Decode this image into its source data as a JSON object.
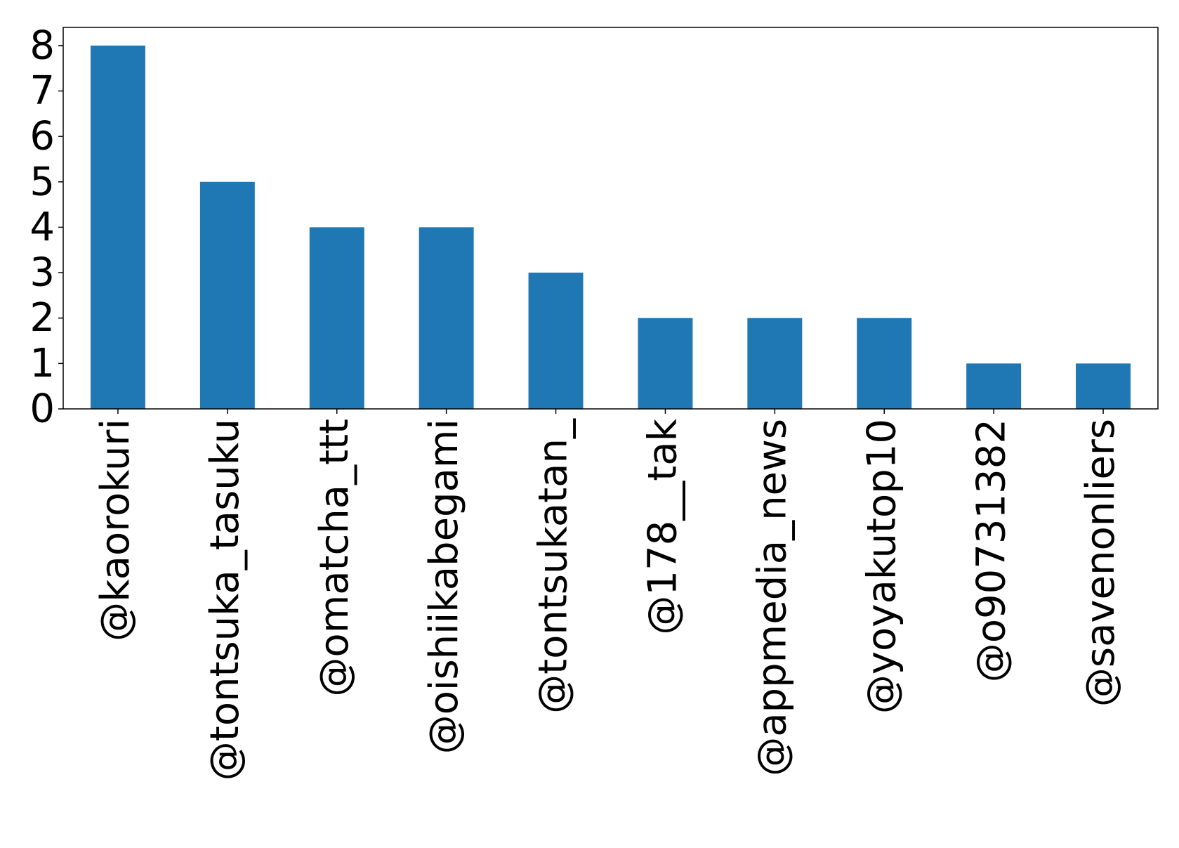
{
  "chart_data": {
    "type": "bar",
    "title": "",
    "xlabel": "",
    "ylabel": "",
    "categories": [
      "@kaorokuri",
      "@tontsuka_tasuku",
      "@omatcha_ttt",
      "@oishiikabegami",
      "@tontsukatan_",
      "@178__tak",
      "@appmedia_news",
      "@yoyakutop10",
      "@o90731382",
      "@savenonliers"
    ],
    "values": [
      8,
      5,
      4,
      4,
      3,
      2,
      2,
      2,
      1,
      1
    ],
    "ylim": [
      0,
      8.4
    ],
    "yticks": [
      "0",
      "1",
      "2",
      "3",
      "4",
      "5",
      "6",
      "7",
      "8"
    ],
    "grid": false,
    "legend": "none",
    "bar_color": "#1f77b4"
  }
}
